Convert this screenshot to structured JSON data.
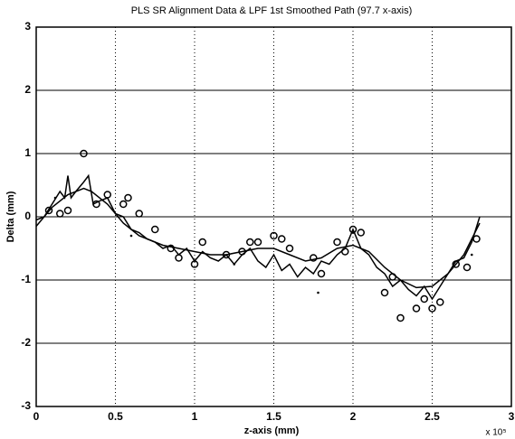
{
  "chart_data": {
    "type": "line",
    "title": "PLS SR Alignment Data & LPF 1st Smoothed Path (97.7 x-axis)",
    "xlabel": "z-axis (mm)",
    "ylabel": "Delta (mm)",
    "x_multiplier": "x 10⁵",
    "xlim": [
      0,
      3
    ],
    "ylim": [
      -3,
      3
    ],
    "xticks": [
      0,
      0.5,
      1,
      1.5,
      2,
      2.5,
      3
    ],
    "yticks": [
      -3,
      -2,
      -1,
      0,
      1,
      2,
      3
    ],
    "grid": true,
    "series": [
      {
        "mode": "line",
        "color": "#000000",
        "x": [
          0,
          0.1,
          0.2,
          0.3,
          0.35,
          0.45,
          0.55,
          0.65,
          0.8,
          1.0,
          1.1,
          1.2,
          1.3,
          1.4,
          1.5,
          1.6,
          1.7,
          1.8,
          1.9,
          2.0,
          2.1,
          2.2,
          2.3,
          2.4,
          2.5,
          2.6,
          2.7,
          2.8
        ],
        "values": [
          -0.15,
          0.15,
          0.35,
          0.45,
          0.4,
          0.2,
          -0.1,
          -0.3,
          -0.45,
          -0.55,
          -0.6,
          -0.6,
          -0.55,
          -0.5,
          -0.5,
          -0.6,
          -0.7,
          -0.65,
          -0.5,
          -0.45,
          -0.55,
          -0.8,
          -1.0,
          -1.12,
          -1.1,
          -0.9,
          -0.6,
          -0.1
        ]
      },
      {
        "mode": "line",
        "color": "#000000",
        "x": [
          0,
          0.05,
          0.1,
          0.15,
          0.18,
          0.2,
          0.22,
          0.25,
          0.3,
          0.33,
          0.36,
          0.4,
          0.45,
          0.5,
          0.55,
          0.6,
          0.65,
          0.7,
          0.75,
          0.8,
          0.85,
          0.9,
          0.95,
          1.0,
          1.05,
          1.1,
          1.15,
          1.2,
          1.25,
          1.3,
          1.35,
          1.4,
          1.45,
          1.5,
          1.55,
          1.6,
          1.65,
          1.7,
          1.75,
          1.8,
          1.85,
          1.9,
          1.95,
          2.0,
          2.05,
          2.1,
          2.15,
          2.2,
          2.25,
          2.3,
          2.35,
          2.4,
          2.45,
          2.5,
          2.55,
          2.6,
          2.65,
          2.7,
          2.75,
          2.8
        ],
        "values": [
          -0.05,
          0.0,
          0.2,
          0.4,
          0.3,
          0.65,
          0.3,
          0.4,
          0.55,
          0.65,
          0.2,
          0.25,
          0.3,
          0.05,
          0.0,
          -0.2,
          -0.25,
          -0.35,
          -0.4,
          -0.5,
          -0.45,
          -0.6,
          -0.5,
          -0.7,
          -0.55,
          -0.65,
          -0.7,
          -0.6,
          -0.75,
          -0.6,
          -0.5,
          -0.7,
          -0.8,
          -0.6,
          -0.85,
          -0.75,
          -0.95,
          -0.8,
          -0.9,
          -0.7,
          -0.75,
          -0.6,
          -0.5,
          -0.2,
          -0.5,
          -0.6,
          -0.8,
          -0.9,
          -1.1,
          -1.0,
          -1.15,
          -1.25,
          -1.1,
          -1.3,
          -1.1,
          -0.9,
          -0.7,
          -0.65,
          -0.4,
          0.0
        ]
      },
      {
        "mode": "circle",
        "color": "#000000",
        "x": [
          0.3,
          0.08,
          0.15,
          0.2,
          0.38,
          0.45,
          0.58,
          0.55,
          0.65,
          0.75,
          0.85,
          0.9,
          1.0,
          1.05,
          1.2,
          1.3,
          1.35,
          1.4,
          1.5,
          1.55,
          1.6,
          1.75,
          1.8,
          1.9,
          1.95,
          2.0,
          2.05,
          2.2,
          2.25,
          2.3,
          2.4,
          2.45,
          2.5,
          2.55,
          2.65,
          2.72,
          2.78
        ],
        "values": [
          1.0,
          0.1,
          0.05,
          0.1,
          0.2,
          0.35,
          0.3,
          0.2,
          0.05,
          -0.2,
          -0.5,
          -0.65,
          -0.75,
          -0.4,
          -0.6,
          -0.55,
          -0.4,
          -0.4,
          -0.3,
          -0.35,
          -0.5,
          -0.65,
          -0.9,
          -0.4,
          -0.55,
          -0.2,
          -0.25,
          -1.2,
          -0.95,
          -1.6,
          -1.45,
          -1.3,
          -1.45,
          -1.35,
          -0.75,
          -0.8,
          -0.35
        ]
      },
      {
        "mode": "dot",
        "color": "#000000",
        "x": [
          0.12,
          0.6,
          1.25,
          1.78,
          2.0,
          2.75
        ],
        "values": [
          0.3,
          -0.3,
          -0.75,
          -1.2,
          -0.25,
          -0.6
        ]
      }
    ]
  }
}
